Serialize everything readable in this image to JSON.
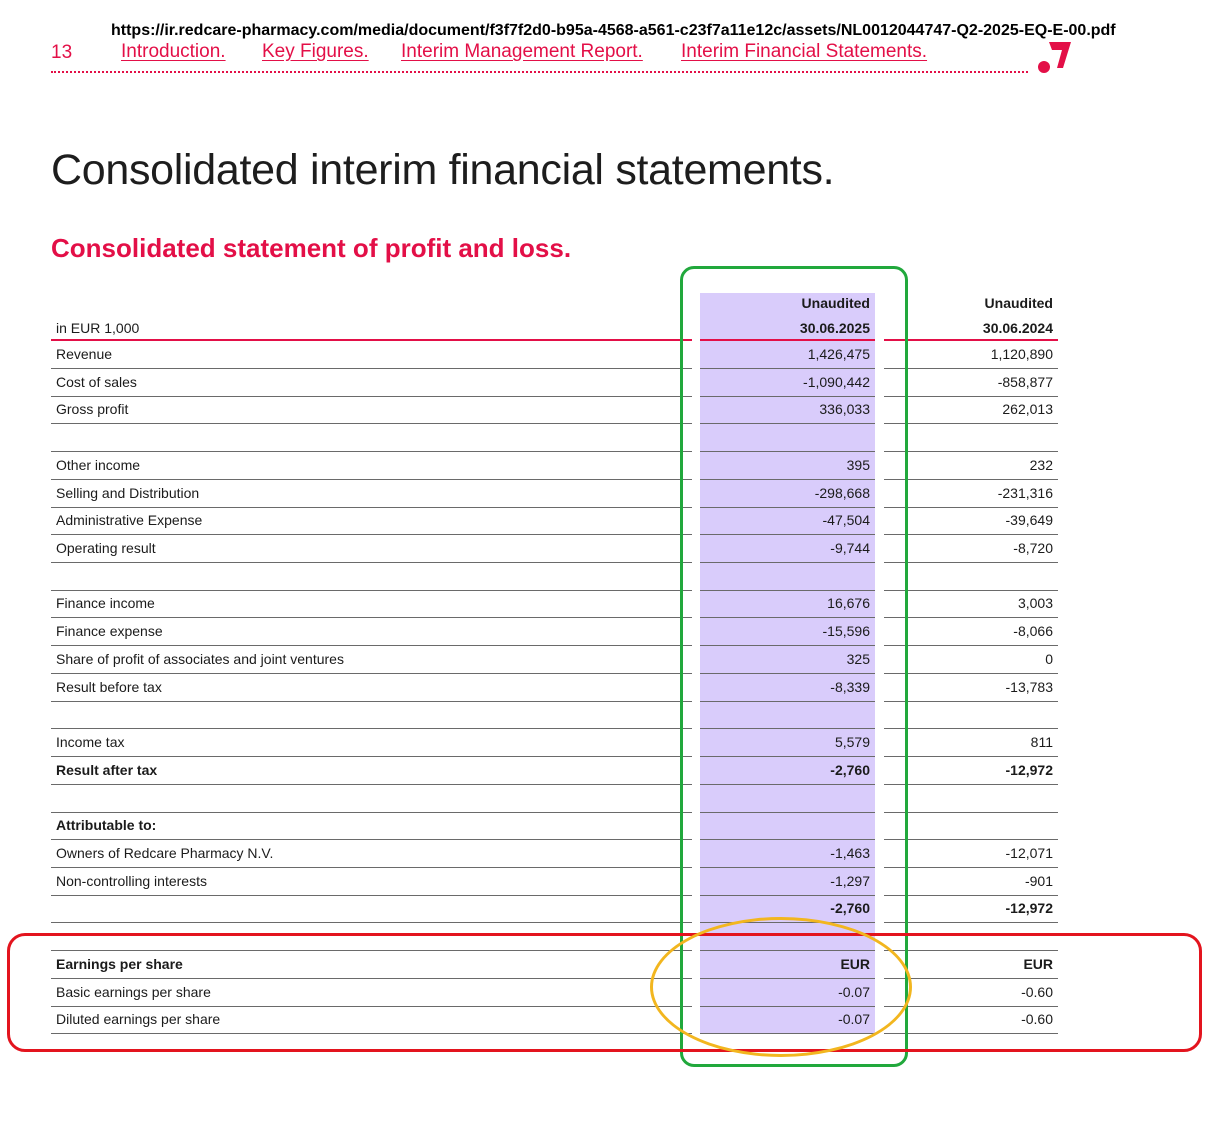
{
  "source_url": "https://ir.redcare-pharmacy.com/media/document/f3f7f2d0-b95a-4568-a561-c23f7a11e12c/assets/NL0012044747-Q2-2025-EQ-E-00.pdf",
  "header": {
    "page_number": "13",
    "nav": [
      {
        "label": "Introduction."
      },
      {
        "label": "Key Figures."
      },
      {
        "label": "Interim Management Report."
      },
      {
        "label": "Interim Financial Statements."
      }
    ],
    "logo_icon": "redcare-logo-icon"
  },
  "title": "Consolidated interim financial statements.",
  "section_title": "Consolidated statement of profit and loss.",
  "colors": {
    "brand_red": "#e30f47",
    "highlight_purple": "#d9ccfb",
    "annotation_green": "#21a83c",
    "annotation_red": "#e3141e",
    "annotation_yellow": "#f2b61f"
  },
  "table": {
    "unit_label": "in EUR 1,000",
    "columns": [
      {
        "status": "Unaudited",
        "date": "30.06.2025"
      },
      {
        "status": "Unaudited",
        "date": "30.06.2024"
      }
    ],
    "rows": [
      {
        "label": "Revenue",
        "v1": "1,426,475",
        "v2": "1,120,890",
        "bold": false
      },
      {
        "label": "Cost of sales",
        "v1": "-1,090,442",
        "v2": "-858,877",
        "bold": false
      },
      {
        "label": "Gross profit",
        "v1": "336,033",
        "v2": "262,013",
        "bold": false
      },
      {
        "label": "",
        "v1": "",
        "v2": "",
        "bold": false
      },
      {
        "label": "Other income",
        "v1": "395",
        "v2": "232",
        "bold": false
      },
      {
        "label": "Selling and Distribution",
        "v1": "-298,668",
        "v2": "-231,316",
        "bold": false
      },
      {
        "label": "Administrative Expense",
        "v1": "-47,504",
        "v2": "-39,649",
        "bold": false
      },
      {
        "label": "Operating result",
        "v1": "-9,744",
        "v2": "-8,720",
        "bold": false
      },
      {
        "label": "",
        "v1": "",
        "v2": "",
        "bold": false
      },
      {
        "label": "Finance income",
        "v1": "16,676",
        "v2": "3,003",
        "bold": false
      },
      {
        "label": "Finance expense",
        "v1": "-15,596",
        "v2": "-8,066",
        "bold": false
      },
      {
        "label": "Share of profit of associates and joint ventures",
        "v1": "325",
        "v2": "0",
        "bold": false
      },
      {
        "label": "Result before tax",
        "v1": "-8,339",
        "v2": "-13,783",
        "bold": false
      },
      {
        "label": "",
        "v1": "",
        "v2": "",
        "bold": false
      },
      {
        "label": "Income tax",
        "v1": "5,579",
        "v2": "811",
        "bold": false
      },
      {
        "label": "Result after tax",
        "v1": "-2,760",
        "v2": "-12,972",
        "bold": true
      },
      {
        "label": "",
        "v1": "",
        "v2": "",
        "bold": false
      },
      {
        "label": "Attributable to:",
        "v1": "",
        "v2": "",
        "bold": true
      },
      {
        "label": "Owners of Redcare Pharmacy N.V.",
        "v1": "-1,463",
        "v2": "-12,071",
        "bold": false
      },
      {
        "label": "Non-controlling interests",
        "v1": "-1,297",
        "v2": "-901",
        "bold": false
      },
      {
        "label": "",
        "v1": "-2,760",
        "v2": "-12,972",
        "bold": true
      },
      {
        "label": "",
        "v1": "",
        "v2": "",
        "bold": false
      },
      {
        "label": "Earnings per share",
        "v1": "EUR",
        "v2": "EUR",
        "bold": true
      },
      {
        "label": "Basic earnings per share",
        "v1": "-0.07",
        "v2": "-0.60",
        "bold": false
      },
      {
        "label": "Diluted earnings per share",
        "v1": "-0.07",
        "v2": "-0.60",
        "bold": false
      }
    ]
  }
}
